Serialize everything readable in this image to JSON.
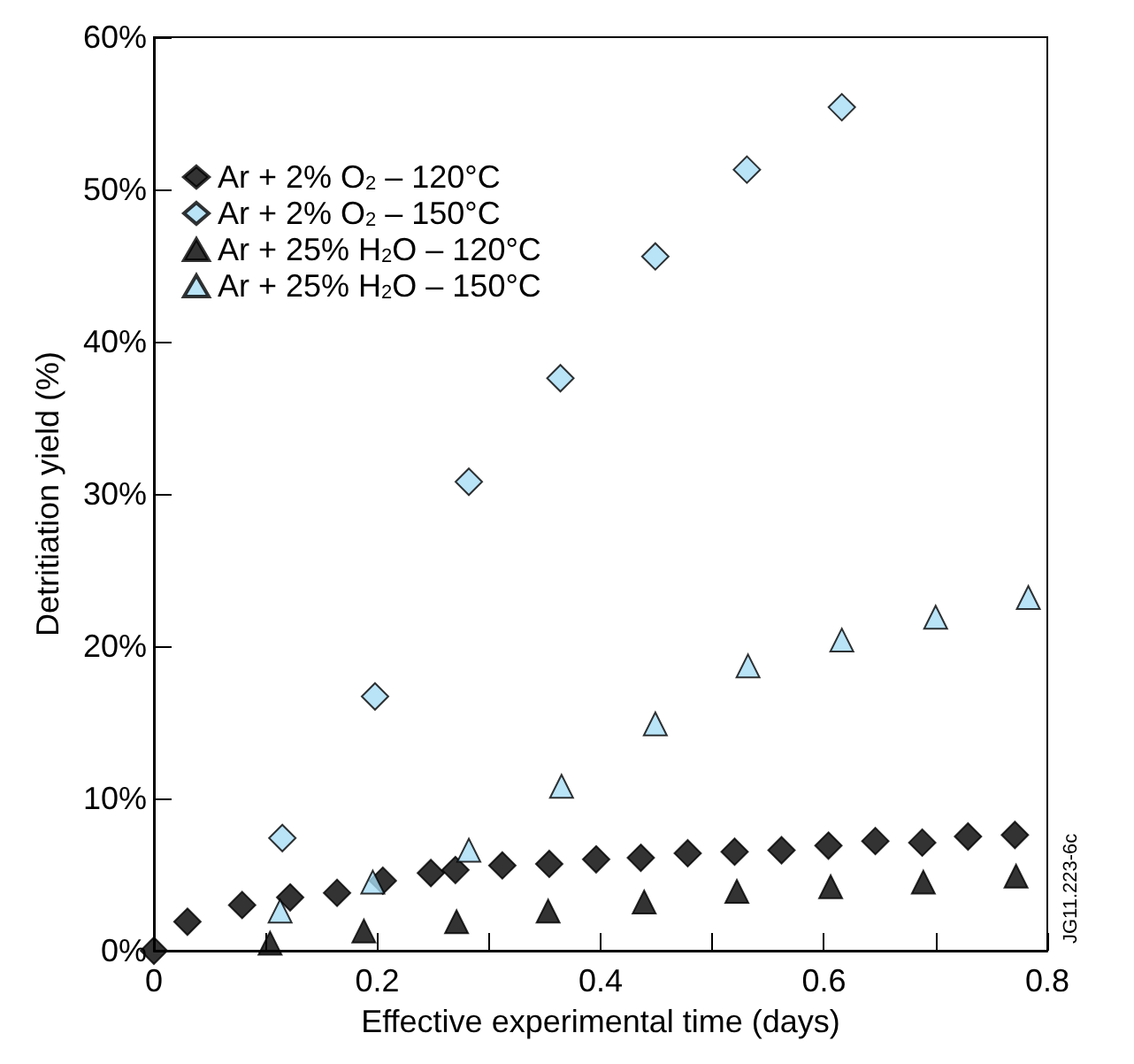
{
  "chart_data": {
    "type": "scatter",
    "xlabel": "Effective experimental time (days)",
    "ylabel": "Detritiation yield (%)",
    "annotations": [
      "JG11.223-6c"
    ],
    "xlim": [
      0,
      0.8
    ],
    "xticks": [
      0,
      {
        "value": 0.1,
        "label": null
      },
      0.2,
      {
        "value": 0.3,
        "label": null
      },
      0.4,
      {
        "value": 0.5,
        "label": null
      },
      0.6,
      {
        "value": 0.7,
        "label": null
      },
      0.8
    ],
    "ylim": [
      0,
      60
    ],
    "yticks": [
      {
        "value": 0,
        "label": "0%"
      },
      {
        "value": 10,
        "label": "10%"
      },
      {
        "value": 20,
        "label": "20%"
      },
      {
        "value": 30,
        "label": "30%"
      },
      {
        "value": 40,
        "label": "40%"
      },
      {
        "value": 50,
        "label": "50%"
      },
      {
        "value": 60,
        "label": "60%"
      }
    ],
    "grid": false,
    "legend": "top left",
    "series": [
      {
        "name": "Ar + 2% O$_{2}$ – 120°C",
        "color": "#000000",
        "marker": "diamond",
        "x": [
          0,
          0.03,
          0.079,
          0.122,
          0.164,
          0.205,
          0.248,
          0.27,
          0.312,
          0.354,
          0.396,
          0.436,
          0.478,
          0.52,
          0.562,
          0.604,
          0.646,
          0.688,
          0.729,
          0.771
        ],
        "values": [
          0,
          1.9,
          3.0,
          3.5,
          3.8,
          4.6,
          5.1,
          5.3,
          5.6,
          5.7,
          6.0,
          6.1,
          6.4,
          6.5,
          6.6,
          6.9,
          7.2,
          7.1,
          7.5,
          7.6
        ]
      },
      {
        "name": "Ar + 2% O$_{2}$ – 150°C",
        "color": "#a8dcf5",
        "marker": "diamond",
        "x": [
          0.115,
          0.198,
          0.282,
          0.364,
          0.449,
          0.531,
          0.616
        ],
        "values": [
          7.4,
          16.7,
          30.8,
          37.6,
          45.6,
          51.3,
          55.4
        ]
      },
      {
        "name": "Ar + 25% H$_{2}$O – 120°C",
        "color": "#000000",
        "marker": "triangle",
        "x": [
          0.104,
          0.188,
          0.271,
          0.353,
          0.439,
          0.522,
          0.606,
          0.689,
          0.772
        ],
        "values": [
          0.5,
          1.3,
          1.9,
          2.6,
          3.2,
          3.9,
          4.2,
          4.5,
          4.9
        ]
      },
      {
        "name": "Ar + 25% H$_{2}$O – 150°C",
        "color": "#a8dcf5",
        "marker": "triangle",
        "x": [
          0.113,
          0.196,
          0.282,
          0.365,
          0.449,
          0.532,
          0.616,
          0.7,
          0.783
        ],
        "values": [
          2.6,
          4.5,
          6.6,
          10.8,
          14.9,
          18.7,
          20.4,
          21.9,
          23.2
        ]
      }
    ]
  }
}
